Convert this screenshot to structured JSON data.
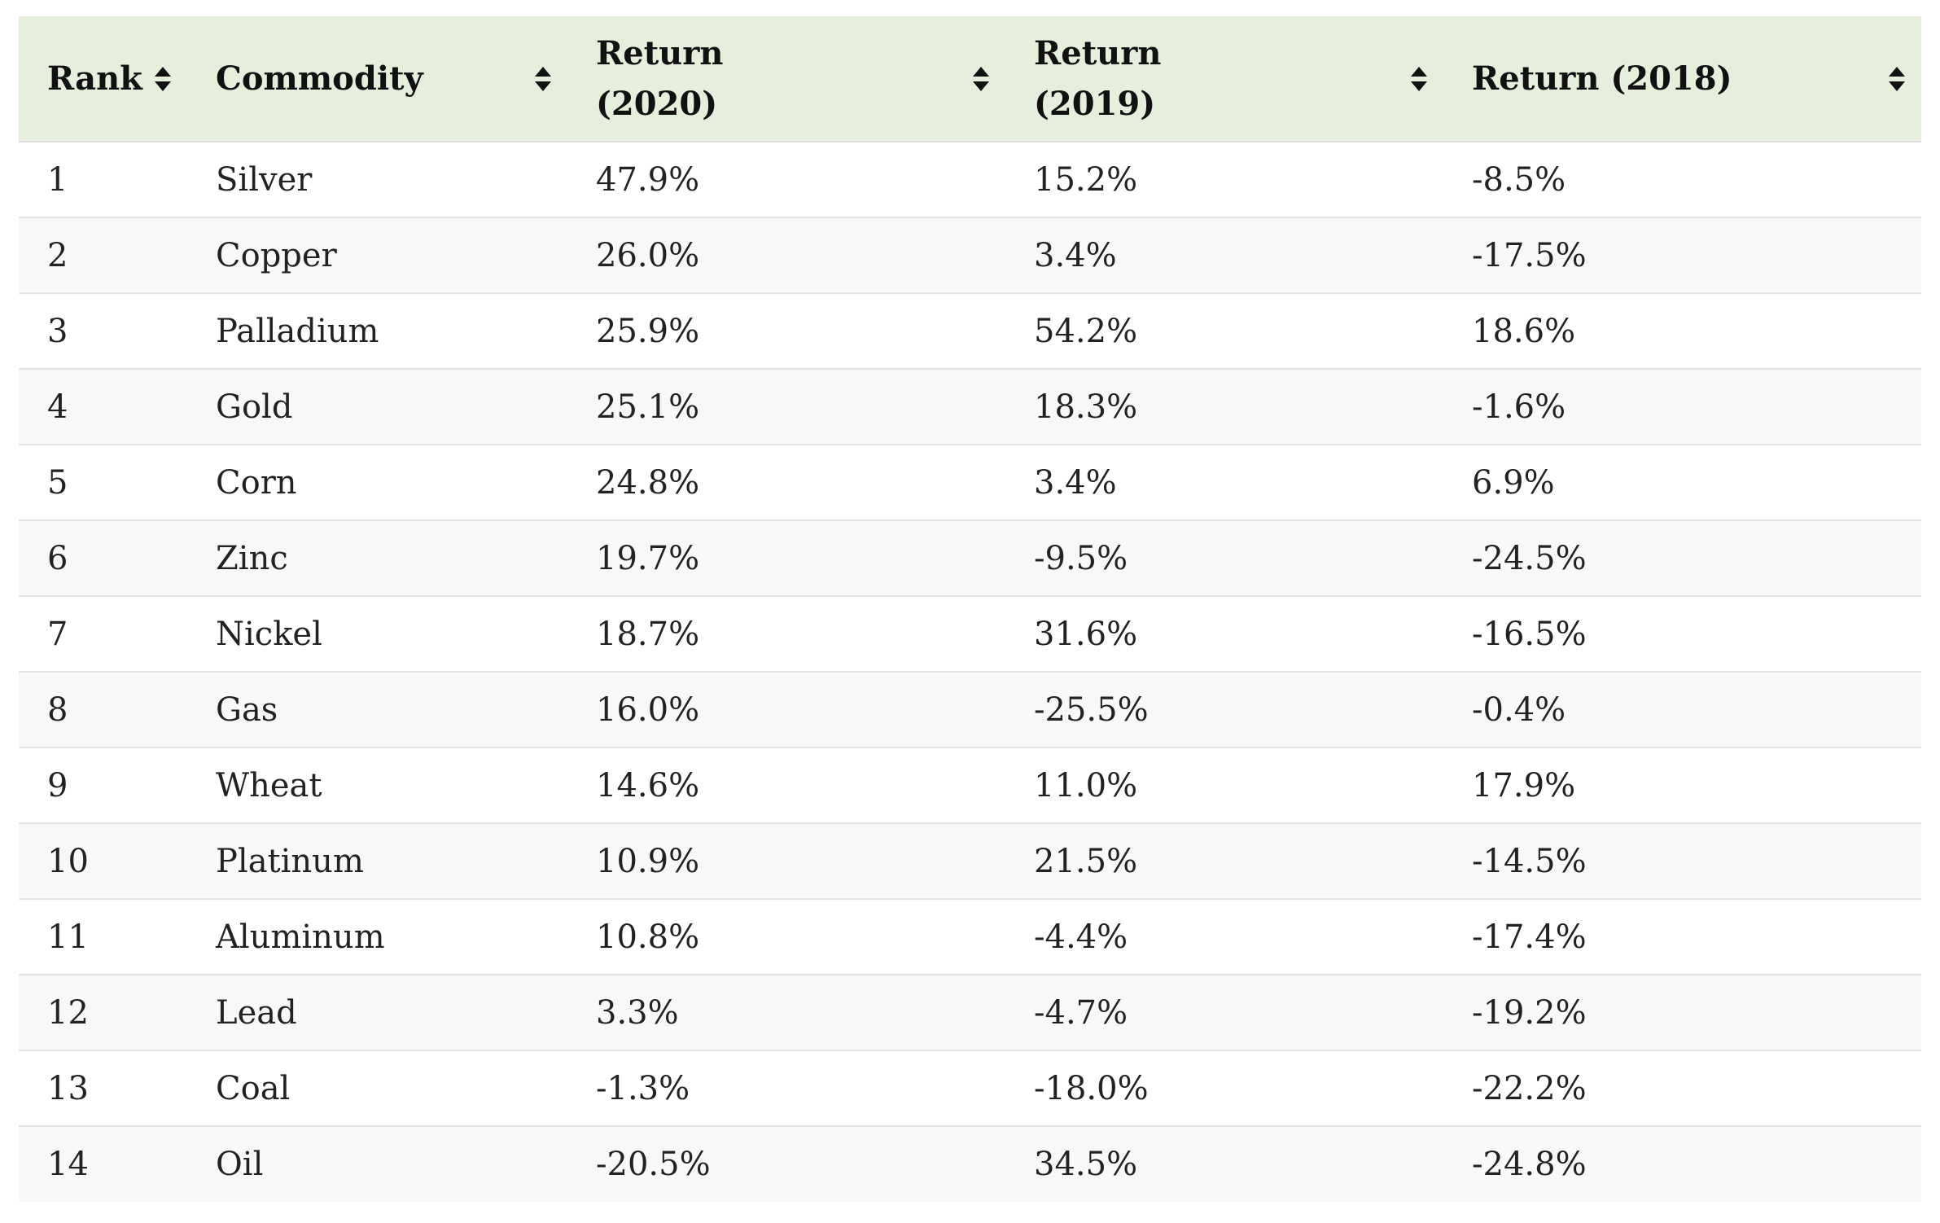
{
  "table": {
    "columns": [
      {
        "label": "Rank",
        "sort_icon": "sort-updown-icon"
      },
      {
        "label": "Commodity",
        "sort_icon": "sort-updown-icon"
      },
      {
        "label": "Return (2020)",
        "sort_icon": "sort-updown-icon"
      },
      {
        "label": "Return (2019)",
        "sort_icon": "sort-updown-icon"
      },
      {
        "label": "Return (2018)",
        "sort_icon": "sort-updown-icon"
      }
    ],
    "rows": [
      {
        "rank": "1",
        "commodity": "Silver",
        "r2020": "47.9%",
        "r2019": "15.2%",
        "r2018": "-8.5%"
      },
      {
        "rank": "2",
        "commodity": "Copper",
        "r2020": "26.0%",
        "r2019": "3.4%",
        "r2018": "-17.5%"
      },
      {
        "rank": "3",
        "commodity": "Palladium",
        "r2020": "25.9%",
        "r2019": "54.2%",
        "r2018": "18.6%"
      },
      {
        "rank": "4",
        "commodity": "Gold",
        "r2020": "25.1%",
        "r2019": "18.3%",
        "r2018": "-1.6%"
      },
      {
        "rank": "5",
        "commodity": "Corn",
        "r2020": "24.8%",
        "r2019": "3.4%",
        "r2018": "6.9%"
      },
      {
        "rank": "6",
        "commodity": "Zinc",
        "r2020": "19.7%",
        "r2019": "-9.5%",
        "r2018": "-24.5%"
      },
      {
        "rank": "7",
        "commodity": "Nickel",
        "r2020": "18.7%",
        "r2019": "31.6%",
        "r2018": "-16.5%"
      },
      {
        "rank": "8",
        "commodity": "Gas",
        "r2020": "16.0%",
        "r2019": "-25.5%",
        "r2018": "-0.4%"
      },
      {
        "rank": "9",
        "commodity": "Wheat",
        "r2020": "14.6%",
        "r2019": "11.0%",
        "r2018": "17.9%"
      },
      {
        "rank": "10",
        "commodity": "Platinum",
        "r2020": "10.9%",
        "r2019": "21.5%",
        "r2018": "-14.5%"
      },
      {
        "rank": "11",
        "commodity": "Aluminum",
        "r2020": "10.8%",
        "r2019": "-4.4%",
        "r2018": "-17.4%"
      },
      {
        "rank": "12",
        "commodity": "Lead",
        "r2020": "3.3%",
        "r2019": "-4.7%",
        "r2018": "-19.2%"
      },
      {
        "rank": "13",
        "commodity": "Coal",
        "r2020": "-1.3%",
        "r2019": "-18.0%",
        "r2018": "-22.2%"
      },
      {
        "rank": "14",
        "commodity": "Oil",
        "r2020": "-20.5%",
        "r2019": "34.5%",
        "r2018": "-24.8%"
      }
    ]
  },
  "colors": {
    "header_bg": "#e6efdc",
    "row_alt_bg": "#f8f8f8",
    "border": "#e4e4e4",
    "text": "#222222"
  }
}
